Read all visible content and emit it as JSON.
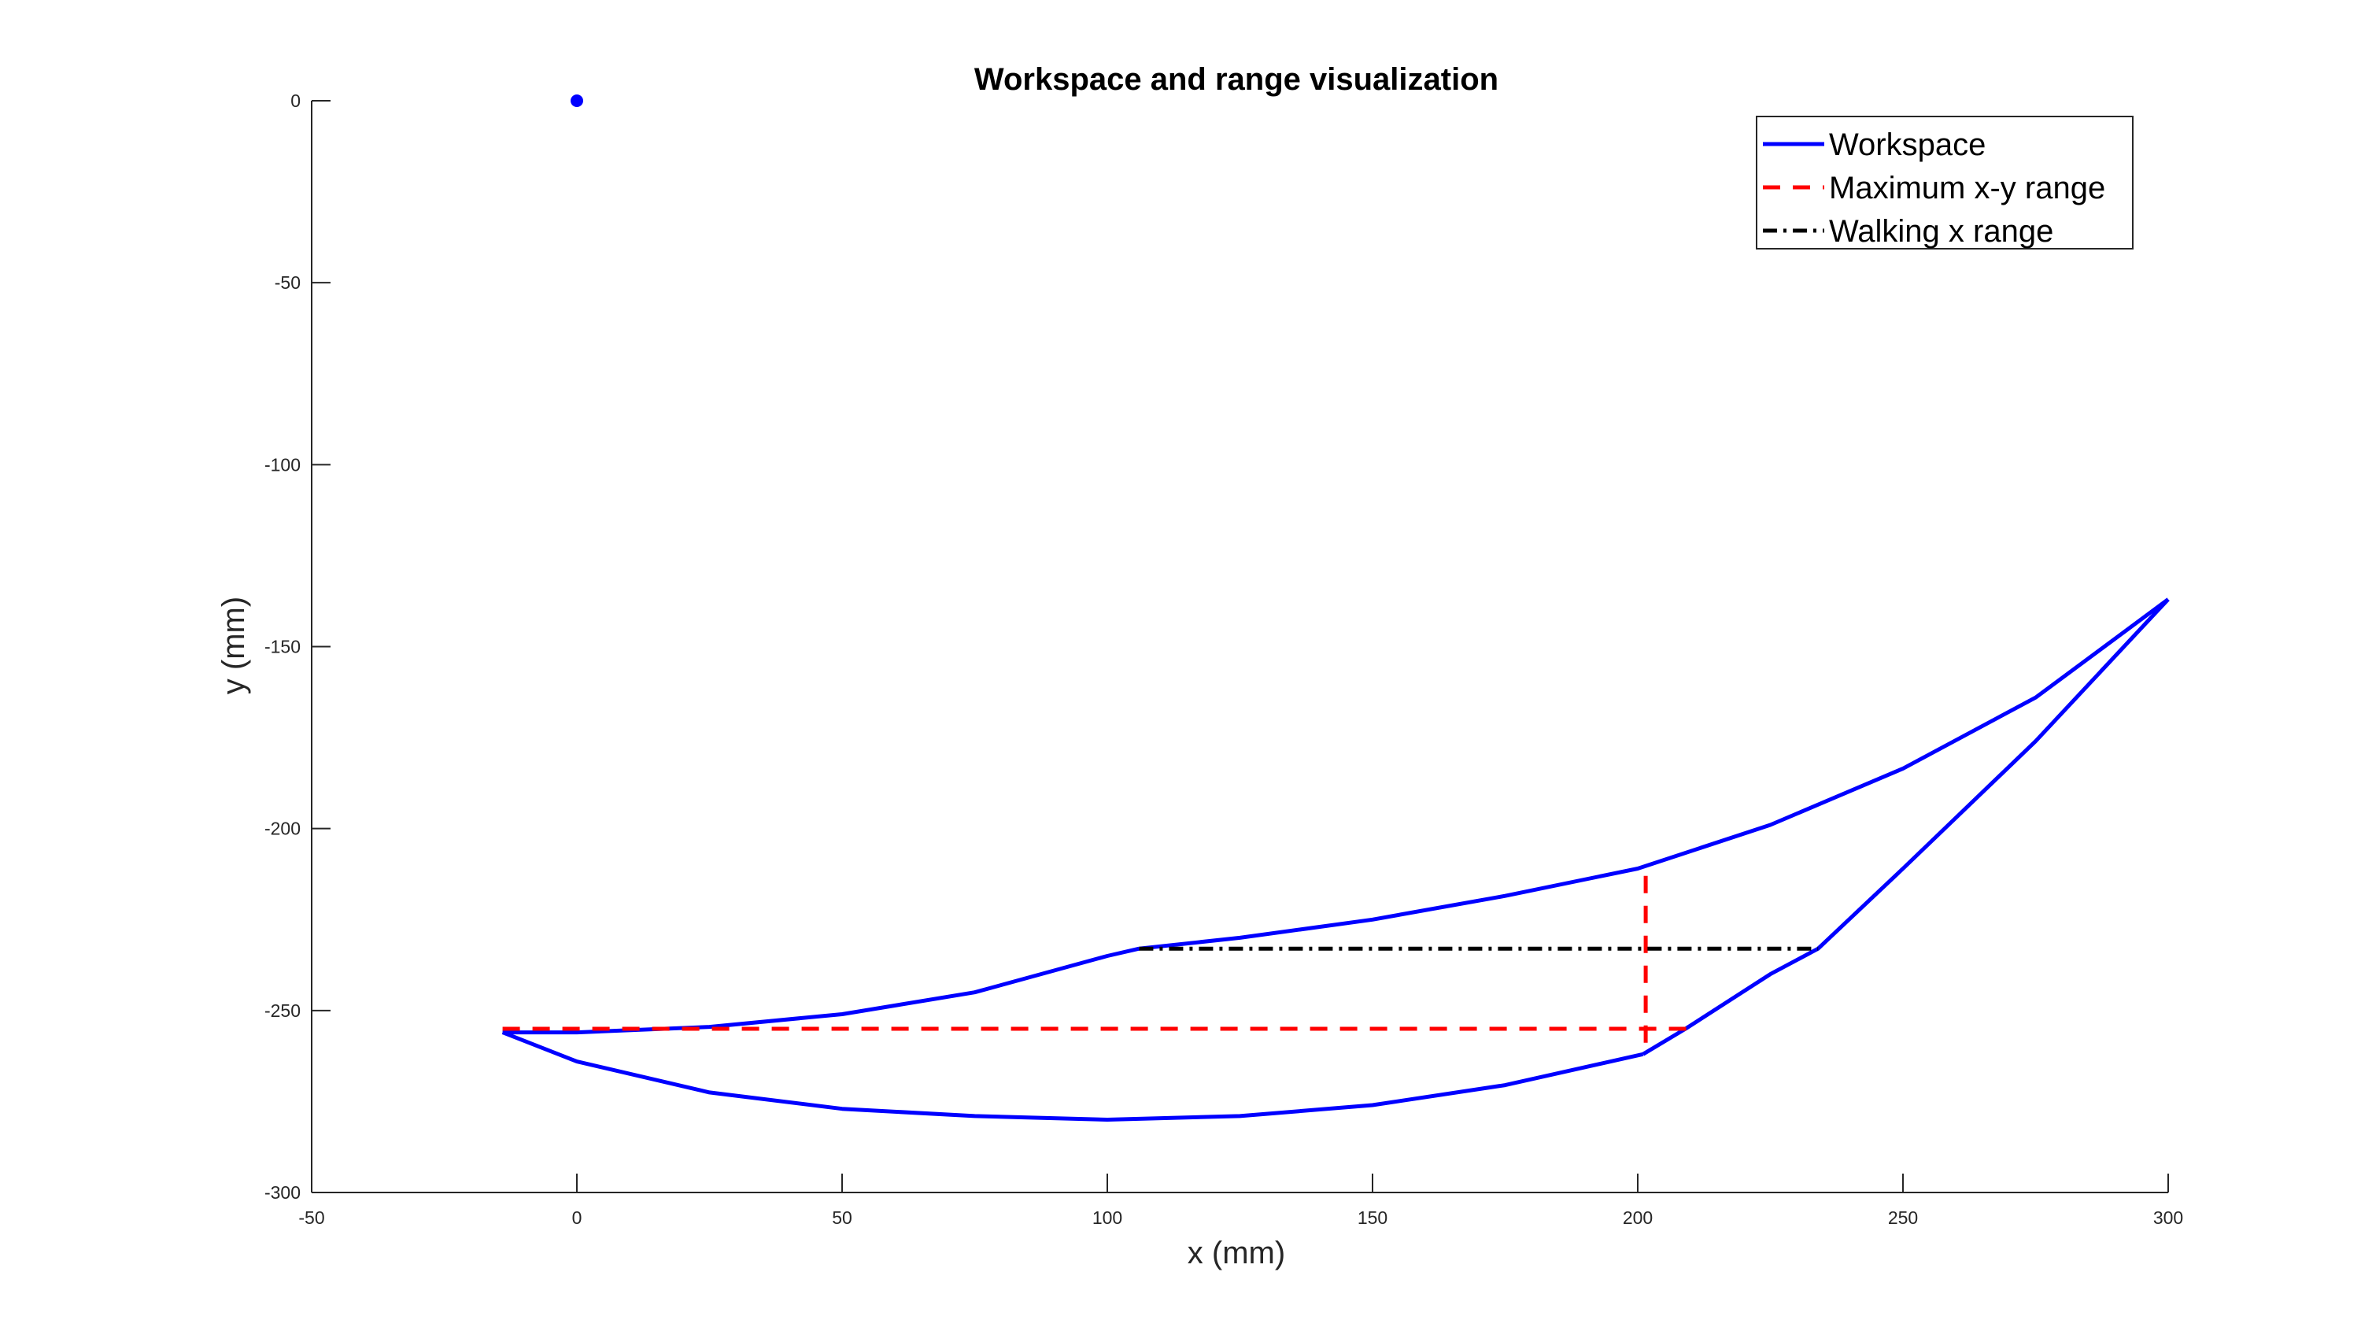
{
  "chart_data": {
    "type": "line",
    "title": "Workspace and range visualization",
    "xlabel": "x (mm)",
    "ylabel": "y (mm)",
    "xlim": [
      -50,
      300
    ],
    "ylim": [
      -300,
      0
    ],
    "xticks": [
      -50,
      0,
      50,
      100,
      150,
      200,
      250,
      300
    ],
    "yticks": [
      0,
      -50,
      -100,
      -150,
      -200,
      -250,
      -300
    ],
    "grid": false,
    "legend_position": "top-right",
    "series": [
      {
        "name": "Workspace",
        "style": "solid",
        "color": "#0000ff",
        "segments": [
          [
            [
              -14,
              -256
            ],
            [
              0,
              -256
            ],
            [
              25,
              -254.5
            ],
            [
              50,
              -251
            ],
            [
              75,
              -245
            ],
            [
              100,
              -235
            ],
            [
              106,
              -233
            ]
          ],
          [
            [
              106,
              -233
            ],
            [
              125,
              -230
            ],
            [
              150,
              -225
            ],
            [
              175,
              -218.5
            ],
            [
              200,
              -211
            ],
            [
              225,
              -199
            ],
            [
              250,
              -183.5
            ],
            [
              275,
              -164
            ],
            [
              300,
              -137
            ]
          ],
          [
            [
              300,
              -137
            ],
            [
              275,
              -176
            ],
            [
              250,
              -211
            ],
            [
              234,
              -233
            ],
            [
              225,
              -240
            ],
            [
              209,
              -255
            ],
            [
              201,
              -262
            ]
          ],
          [
            [
              201,
              -262
            ],
            [
              175,
              -270.5
            ],
            [
              150,
              -276
            ],
            [
              125,
              -279
            ],
            [
              100,
              -280
            ],
            [
              75,
              -279
            ],
            [
              50,
              -277
            ],
            [
              25,
              -272.5
            ],
            [
              0,
              -264
            ],
            [
              -14,
              -256
            ]
          ]
        ]
      },
      {
        "name": "Maximum x-y range",
        "style": "dashed",
        "color": "#ff0000",
        "segments": [
          [
            [
              -14,
              -255
            ],
            [
              210,
              -255
            ]
          ],
          [
            [
              201.5,
              -213
            ],
            [
              201.5,
              -261
            ]
          ]
        ]
      },
      {
        "name": "Walking x range",
        "style": "dashdot",
        "color": "#000000",
        "segments": [
          [
            [
              106,
              -233
            ],
            [
              234,
              -233
            ]
          ]
        ]
      }
    ],
    "markers": [
      {
        "x": 0,
        "y": 0,
        "color": "#0000ff"
      }
    ]
  }
}
